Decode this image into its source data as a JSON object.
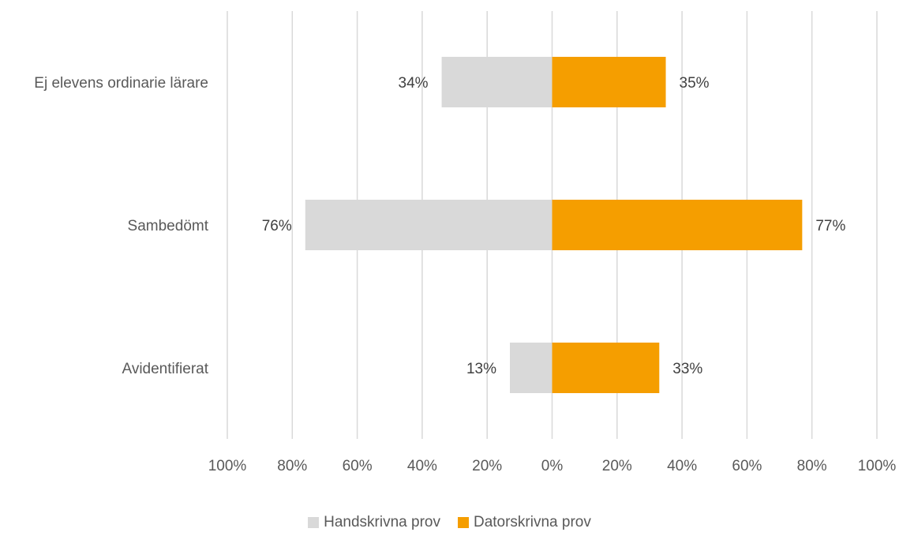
{
  "chart_data": {
    "type": "bar",
    "orientation": "horizontal-diverging",
    "categories": [
      "Ej elevens ordinarie lärare",
      "Sambedömt",
      "Avidentifierat"
    ],
    "series": [
      {
        "name": "Handskrivna prov",
        "values": [
          34,
          76,
          13
        ],
        "labels": [
          "34%",
          "76%",
          "13%"
        ],
        "color": "#d9d9d9",
        "side": "left"
      },
      {
        "name": "Datorskrivna prov",
        "values": [
          35,
          77,
          33
        ],
        "labels": [
          "35%",
          "77%",
          "33%"
        ],
        "color": "#f59e00",
        "side": "right"
      }
    ],
    "xlim": [
      -100,
      100
    ],
    "xticks": [
      -100,
      -80,
      -60,
      -40,
      -20,
      0,
      20,
      40,
      60,
      80,
      100
    ],
    "xtick_labels": [
      "100%",
      "80%",
      "60%",
      "40%",
      "20%",
      "0%",
      "20%",
      "40%",
      "60%",
      "80%",
      "100%"
    ],
    "grid": true,
    "legend_position": "bottom"
  }
}
